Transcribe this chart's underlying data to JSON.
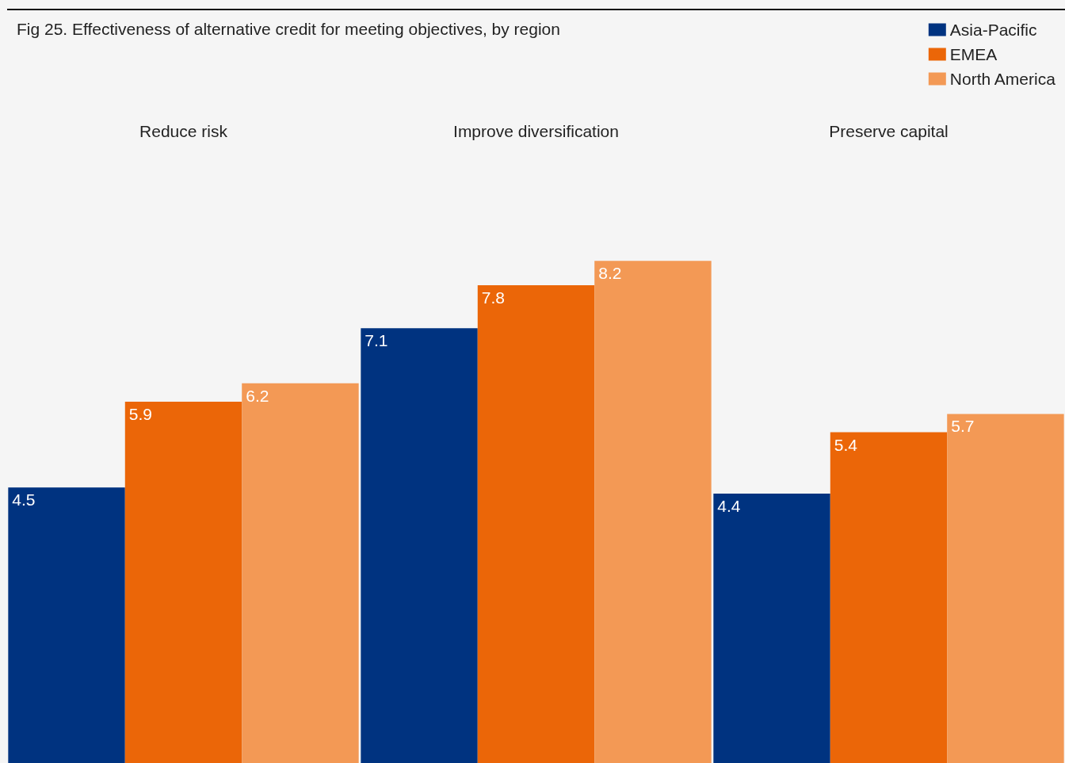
{
  "chart_data": {
    "type": "bar",
    "title": "Fig 25. Effectiveness of alternative credit for meeting objectives, by region",
    "categories": [
      "Reduce risk",
      "Improve diversification",
      "Preserve capital"
    ],
    "series": [
      {
        "name": "Asia-Pacific",
        "color": "#003380",
        "values": [
          4.5,
          7.1,
          4.4
        ]
      },
      {
        "name": "EMEA",
        "color": "#eb6608",
        "values": [
          5.9,
          7.8,
          5.4
        ]
      },
      {
        "name": "North America",
        "color": "#f39955",
        "values": [
          6.2,
          8.2,
          5.7
        ]
      }
    ],
    "data_labels": true,
    "legend": "top right"
  }
}
